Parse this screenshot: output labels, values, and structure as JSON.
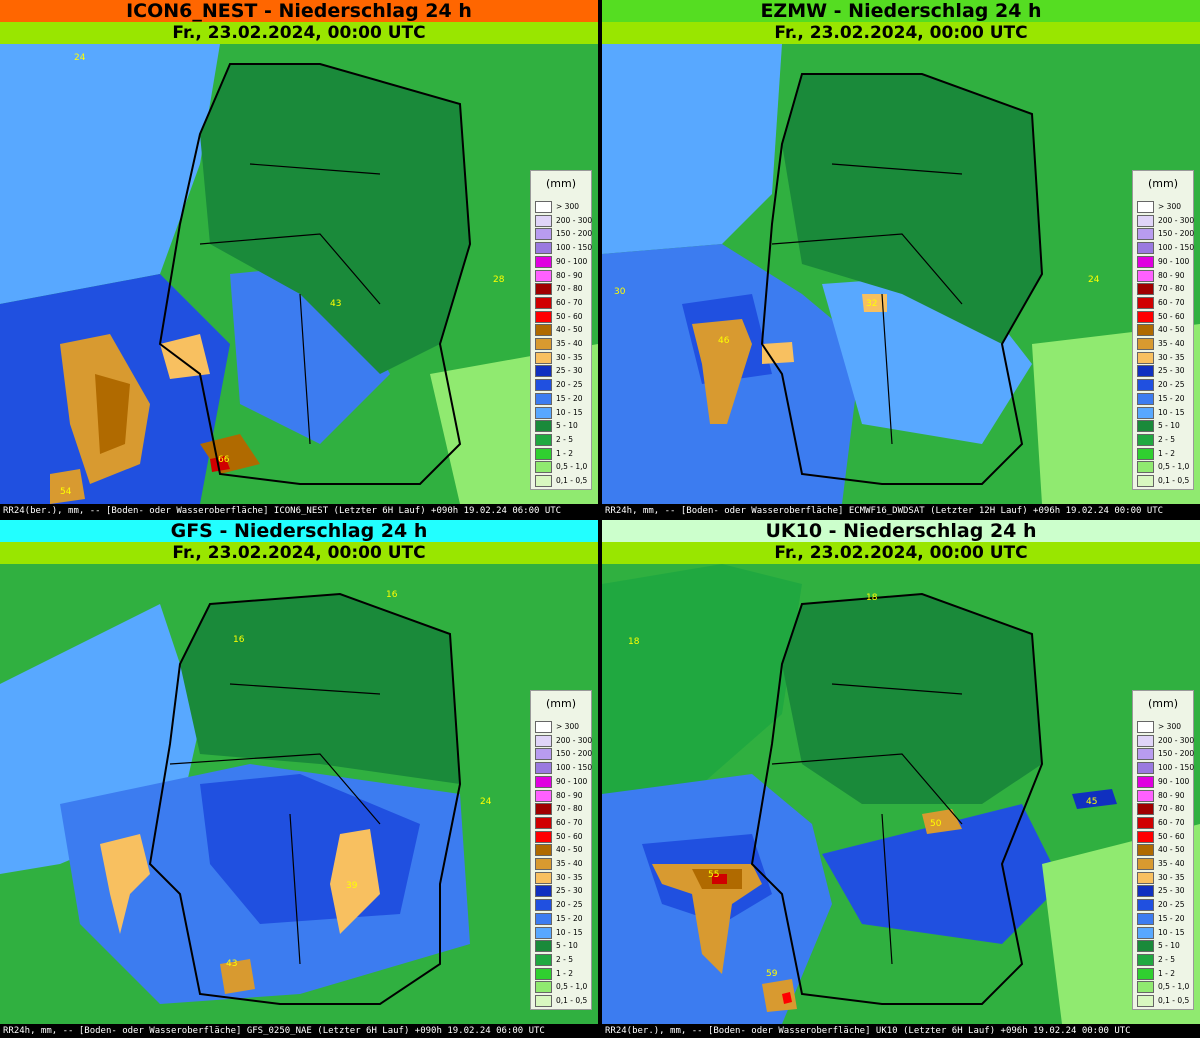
{
  "panels": [
    {
      "title": "ICON6_NEST - Niederschlag 24 h",
      "title_bg": "#ff6600",
      "date": "Fr., 23.02.2024, 00:00 UTC",
      "footer": "RR24(ber.), mm, -- [Boden- oder Wasseroberfläche] ICON6_NEST (Letzter  6H Lauf) +090h  19.02.24 06:00 UTC",
      "labels": [
        "24",
        "43",
        "28",
        "66",
        "54"
      ]
    },
    {
      "title": "EZMW - Niederschlag 24 h",
      "title_bg": "#55dd22",
      "date": "Fr., 23.02.2024, 00:00 UTC",
      "footer": "RR24h, mm, -- [Boden- oder Wasseroberfläche] ECMWF16_DWDSAT (Letzter 12H Lauf) +096h  19.02.24 00:00 UTC",
      "labels": [
        "30",
        "32",
        "46",
        "24"
      ]
    },
    {
      "title": "GFS - Niederschlag 24 h",
      "title_bg": "#22ffff",
      "date": "Fr., 23.02.2024, 00:00 UTC",
      "footer": "RR24h, mm, -- [Boden- oder Wasseroberfläche] GFS_0250_NAE (Letzter  6H Lauf) +090h  19.02.24 06:00 UTC",
      "labels": [
        "16",
        "16",
        "24",
        "39",
        "43"
      ]
    },
    {
      "title": "UK10 - Niederschlag 24 h",
      "title_bg": "#ccffcc",
      "date": "Fr., 23.02.2024, 00:00 UTC",
      "footer": "RR24(ber.), mm, -- [Boden- oder Wasseroberfläche] UK10 (Letzter  6H Lauf) +096h  19.02.24 00:00 UTC",
      "labels": [
        "18",
        "18",
        "50",
        "45",
        "55",
        "59"
      ]
    }
  ],
  "legend": {
    "unit": "(mm)",
    "classes": [
      {
        "label": "> 300",
        "color": "#ffffff"
      },
      {
        "label": "200 - 300",
        "color": "#e0d4f8"
      },
      {
        "label": "150 - 200",
        "color": "#b89cf0"
      },
      {
        "label": "100 - 150",
        "color": "#9a7ae0"
      },
      {
        "label": "90 - 100",
        "color": "#e000e0"
      },
      {
        "label": "80 - 90",
        "color": "#ff60ff"
      },
      {
        "label": "70 - 80",
        "color": "#a00000"
      },
      {
        "label": "60 - 70",
        "color": "#d00000"
      },
      {
        "label": "50 - 60",
        "color": "#ff0000"
      },
      {
        "label": "40 - 50",
        "color": "#b06a00"
      },
      {
        "label": "35 - 40",
        "color": "#d89a30"
      },
      {
        "label": "30 - 35",
        "color": "#f8c060"
      },
      {
        "label": "25 - 30",
        "color": "#1030c0"
      },
      {
        "label": "20 - 25",
        "color": "#2050e0"
      },
      {
        "label": "15 - 20",
        "color": "#3c7cf0"
      },
      {
        "label": "10 - 15",
        "color": "#58a8ff"
      },
      {
        "label": "5 - 10",
        "color": "#1a8a3a"
      },
      {
        "label": "2 - 5",
        "color": "#20a840"
      },
      {
        "label": "1 - 2",
        "color": "#30d030"
      },
      {
        "label": "0,5 - 1,0",
        "color": "#90ea70"
      },
      {
        "label": "0,1 - 0,5",
        "color": "#d8f8c0"
      }
    ]
  }
}
